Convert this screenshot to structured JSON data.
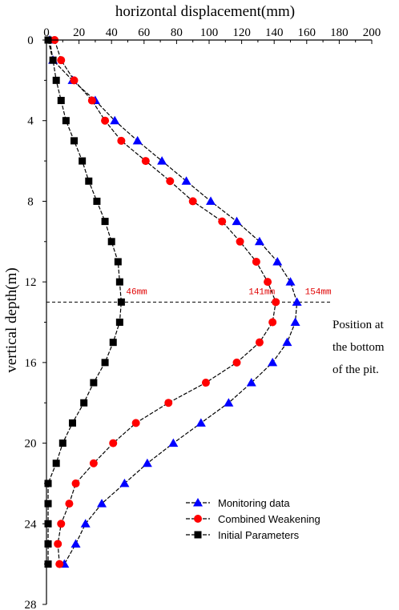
{
  "chart_data": {
    "type": "line",
    "title": "",
    "xlabel": "horizontal displacement(mm)",
    "ylabel": "vertical depth(m)",
    "xlim": [
      0,
      200
    ],
    "ylim": [
      0,
      28
    ],
    "y_inverted": true,
    "x_axis_position": "top",
    "x_ticks": [
      "0",
      "20",
      "40",
      "60",
      "80",
      "100",
      "120",
      "140",
      "160",
      "180",
      "200"
    ],
    "y_ticks": [
      "0",
      "4",
      "8",
      "12",
      "16",
      "20",
      "24",
      "28"
    ],
    "grid": false,
    "legend_position": "bottom-right",
    "series": [
      {
        "name": "Monitoring data",
        "marker": "triangle",
        "color": "#0000ff",
        "points": [
          [
            2,
            0
          ],
          [
            4,
            1
          ],
          [
            16,
            2
          ],
          [
            30,
            3
          ],
          [
            42,
            4
          ],
          [
            56,
            5
          ],
          [
            71,
            6
          ],
          [
            86,
            7
          ],
          [
            101,
            8
          ],
          [
            117,
            9
          ],
          [
            131,
            10
          ],
          [
            142,
            11
          ],
          [
            150,
            12
          ],
          [
            154,
            13
          ],
          [
            153,
            14
          ],
          [
            148,
            15
          ],
          [
            139,
            16
          ],
          [
            126,
            17
          ],
          [
            112,
            18
          ],
          [
            95,
            19
          ],
          [
            78,
            20
          ],
          [
            62,
            21
          ],
          [
            48,
            22
          ],
          [
            34,
            23
          ],
          [
            24,
            24
          ],
          [
            18,
            25
          ],
          [
            11,
            26
          ]
        ]
      },
      {
        "name": "Combined Weakening",
        "marker": "circle",
        "color": "#ff0000",
        "points": [
          [
            5,
            0
          ],
          [
            9,
            1
          ],
          [
            17,
            2
          ],
          [
            28,
            3
          ],
          [
            36,
            4
          ],
          [
            46,
            5
          ],
          [
            61,
            6
          ],
          [
            76,
            7
          ],
          [
            90,
            8
          ],
          [
            108,
            9
          ],
          [
            119,
            10
          ],
          [
            129,
            11
          ],
          [
            136,
            12
          ],
          [
            141,
            13
          ],
          [
            139,
            14
          ],
          [
            131,
            15
          ],
          [
            117,
            16
          ],
          [
            98,
            17
          ],
          [
            75,
            18
          ],
          [
            55,
            19
          ],
          [
            41,
            20
          ],
          [
            29,
            21
          ],
          [
            18,
            22
          ],
          [
            14,
            23
          ],
          [
            9,
            24
          ],
          [
            7,
            25
          ],
          [
            8,
            26
          ]
        ]
      },
      {
        "name": "Initial Parameters",
        "marker": "square",
        "color": "#000000",
        "points": [
          [
            1,
            0
          ],
          [
            4,
            1
          ],
          [
            6,
            2
          ],
          [
            9,
            3
          ],
          [
            12,
            4
          ],
          [
            17,
            5
          ],
          [
            22,
            6
          ],
          [
            26,
            7
          ],
          [
            31,
            8
          ],
          [
            36,
            9
          ],
          [
            40,
            10
          ],
          [
            44,
            11
          ],
          [
            45,
            12
          ],
          [
            46,
            13
          ],
          [
            45,
            14
          ],
          [
            41,
            15
          ],
          [
            36,
            16
          ],
          [
            29,
            17
          ],
          [
            23,
            18
          ],
          [
            16,
            19
          ],
          [
            10,
            20
          ],
          [
            6,
            21
          ],
          [
            1,
            22
          ],
          [
            1,
            23
          ],
          [
            1,
            24
          ],
          [
            1,
            25
          ],
          [
            1,
            26
          ]
        ]
      }
    ],
    "reference_line": {
      "depth": 13,
      "style": "dashed",
      "color": "#000000"
    },
    "annotations": [
      {
        "text": "46mm",
        "x": 46,
        "y": 13
      },
      {
        "text": "141mm",
        "x": 141,
        "y": 13
      },
      {
        "text": "154mm",
        "x": 154,
        "y": 13
      }
    ],
    "side_note": [
      "Position at",
      "the bottom",
      "of the pit."
    ]
  }
}
